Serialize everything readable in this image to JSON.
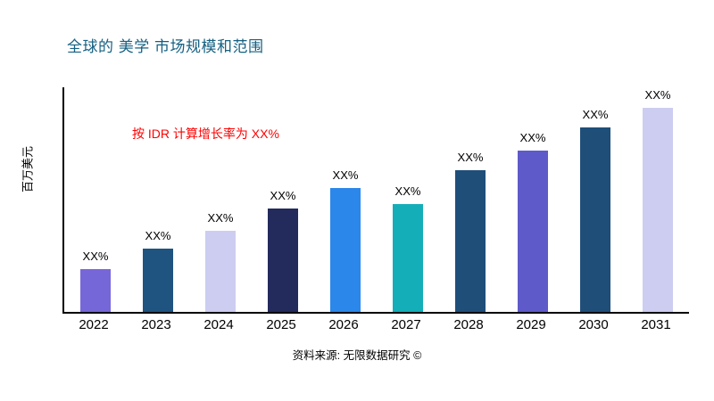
{
  "title": "全球的 美学 市场规模和范围",
  "annotation": "按 IDR 计算增长率为 XX%",
  "y_axis_label": "百万美元",
  "source": "资料来源: 无限数据研究 ©",
  "colors": {
    "title": "#156082",
    "annotation": "#FF0000",
    "axis": "#000000",
    "background": "#FFFFFF"
  },
  "chart_data": {
    "type": "bar",
    "title": "全球的 美学 市场规模和范围",
    "xlabel": "",
    "ylabel": "百万美元",
    "categories": [
      "2022",
      "2023",
      "2024",
      "2025",
      "2026",
      "2027",
      "2028",
      "2029",
      "2030",
      "2031"
    ],
    "values": [
      19,
      28,
      36,
      46,
      55,
      48,
      63,
      72,
      82,
      91
    ],
    "bar_labels": [
      "XX%",
      "XX%",
      "XX%",
      "XX%",
      "XX%",
      "XX%",
      "XX%",
      "XX%",
      "XX%",
      "XX%"
    ],
    "bar_colors": [
      "#7667D8",
      "#1F5380",
      "#CCCDF0",
      "#232A5C",
      "#2B87EA",
      "#14AEB8",
      "#1F4E79",
      "#5F5ACA",
      "#1F4E79",
      "#CCCDF0"
    ],
    "ylim": [
      0,
      100
    ],
    "grid": false,
    "legend": "none"
  }
}
